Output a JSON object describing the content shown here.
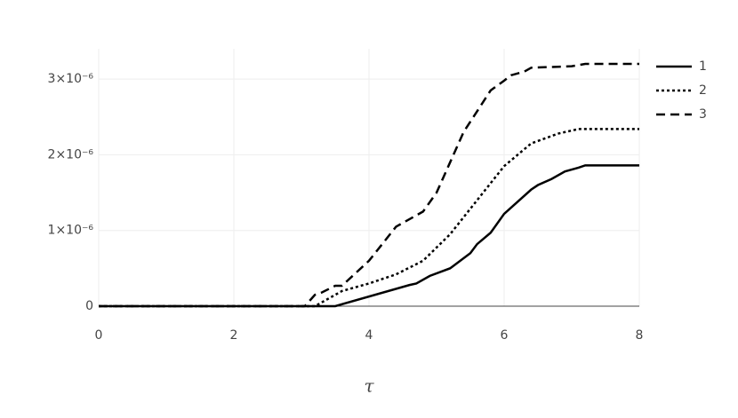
{
  "chart_data": {
    "type": "line",
    "xlabel": "τ",
    "xlim": [
      0,
      8
    ],
    "xticks": [
      0,
      2,
      4,
      6,
      8
    ],
    "ylim": [
      0,
      3.4e-06
    ],
    "yticks": [
      0,
      {
        "value": 1e-06,
        "label": "1×10⁻⁶"
      },
      {
        "value": 2e-06,
        "label": "2×10⁻⁶"
      },
      {
        "value": 3e-06,
        "label": "3×10⁻⁶"
      }
    ],
    "grid": true,
    "legend": "top-right",
    "series": [
      {
        "name": "1",
        "color": "#000000",
        "dash": "solid",
        "x": [
          0,
          3.5,
          4.6,
          4.7,
          4.9,
          5.2,
          5.5,
          5.6,
          5.8,
          6.0,
          6.4,
          6.5,
          6.7,
          6.9,
          7.1,
          7.2,
          8
        ],
        "values": [
          0,
          0,
          2.8e-07,
          3e-07,
          4e-07,
          5e-07,
          7e-07,
          8.2e-07,
          9.7e-07,
          1.22e-06,
          1.54e-06,
          1.6e-06,
          1.68e-06,
          1.78e-06,
          1.83e-06,
          1.86e-06,
          1.86e-06
        ]
      },
      {
        "name": "2",
        "color": "#000000",
        "dash": "dot",
        "x": [
          0,
          3.2,
          3.6,
          4.0,
          4.4,
          4.8,
          5.2,
          5.6,
          6.0,
          6.4,
          6.8,
          7.1,
          8
        ],
        "values": [
          0,
          0,
          2e-07,
          3e-07,
          4.2e-07,
          6e-07,
          9.5e-07,
          1.4e-06,
          1.85e-06,
          2.15e-06,
          2.28e-06,
          2.34e-06,
          2.34e-06
        ]
      },
      {
        "name": "3",
        "color": "#000000",
        "dash": "dash",
        "x": [
          0,
          3.05,
          3.2,
          3.3,
          3.5,
          3.6,
          4.0,
          4.4,
          4.5,
          4.7,
          4.8,
          5.0,
          5.2,
          5.4,
          5.8,
          6.0,
          6.1,
          6.3,
          6.4,
          7.0,
          7.2,
          8
        ],
        "values": [
          0,
          0,
          1.5e-07,
          1.8e-07,
          2.7e-07,
          2.7e-07,
          6e-07,
          1.05e-06,
          1.1e-06,
          1.2e-06,
          1.25e-06,
          1.5e-06,
          1.9e-06,
          2.3e-06,
          2.85e-06,
          2.98e-06,
          3.05e-06,
          3.1e-06,
          3.15e-06,
          3.17e-06,
          3.2e-06,
          3.2e-06
        ]
      }
    ]
  }
}
